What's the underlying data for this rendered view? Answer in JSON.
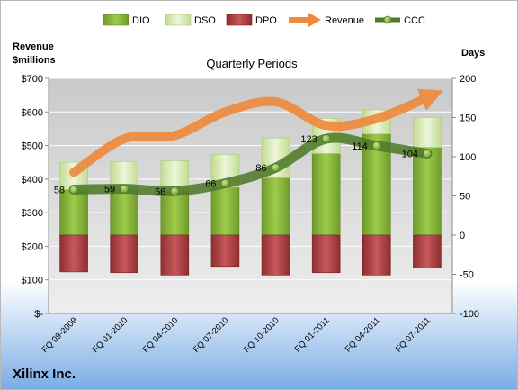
{
  "chart_data": {
    "type": "bar",
    "title": "Quarterly Periods",
    "company": "Xilinx Inc.",
    "left_axis_label": [
      "Revenue",
      "$millions"
    ],
    "right_axis_label": "Days",
    "left_ticks": [
      "$-",
      "$100",
      "$200",
      "$300",
      "$400",
      "$500",
      "$600",
      "$700"
    ],
    "left_ylim": [
      0,
      700
    ],
    "right_ticks": [
      "-100",
      "-50",
      "0",
      "50",
      "100",
      "150",
      "200"
    ],
    "right_ylim": [
      -100,
      200
    ],
    "categories": [
      "FQ 09-2009",
      "FQ 01-2010",
      "FQ 04-2010",
      "FQ 07-2010",
      "FQ 10-2010",
      "FQ 01-2011",
      "FQ 04-2011",
      "FQ 07-2011"
    ],
    "legend": [
      "DIO",
      "DSO",
      "DPO",
      "Revenue",
      "CCC"
    ],
    "series": [
      {
        "name": "DIO",
        "axis": "days",
        "values": [
          58,
          59,
          56,
          61,
          73,
          104,
          129,
          112
        ]
      },
      {
        "name": "DSO",
        "axis": "days",
        "values": [
          35,
          35,
          39,
          42,
          51,
          45,
          31,
          38
        ]
      },
      {
        "name": "DPO",
        "axis": "days",
        "values": [
          -47,
          -48,
          -51,
          -40,
          -51,
          -48,
          -51,
          -42
        ]
      },
      {
        "name": "Revenue",
        "axis": "revenue",
        "values": [
          420,
          520,
          530,
          600,
          630,
          560,
          580,
          650
        ]
      },
      {
        "name": "CCC",
        "axis": "days",
        "values": [
          58,
          59,
          56,
          66,
          86,
          123,
          114,
          104
        ]
      }
    ],
    "ccc_labels": [
      "58",
      "59",
      "56",
      "66",
      "86",
      "123",
      "114",
      "104"
    ],
    "colors": {
      "DIO": "#8dba3c",
      "DSO": "#d9ebb3",
      "DPO": "#b94548",
      "Revenue": "#ee8a3e",
      "CCC": "#4e7a2a",
      "plot_bg": "#d6d6d6",
      "bottom_gradient": "#7fb0e6"
    },
    "grid": true,
    "legend_position": "top"
  }
}
